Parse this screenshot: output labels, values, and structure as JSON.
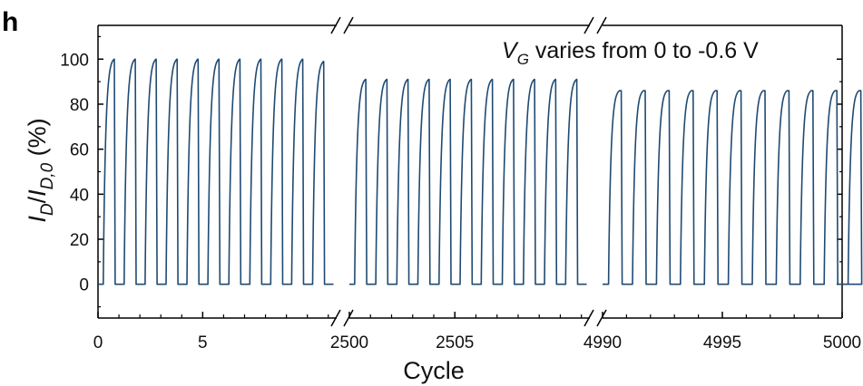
{
  "panel_label": "h",
  "chart_data": {
    "type": "line",
    "xlabel": "Cycle",
    "ylabel": {
      "main": "I",
      "sub1": "D",
      "slash": "/",
      "main2": "I",
      "sub2": "D,0",
      "unit": " (%)"
    },
    "annotation": {
      "var": "V",
      "sub": "G",
      "text": " varies from 0 to -0.6 V"
    },
    "ylim": [
      -15,
      115
    ],
    "y_ticks": [
      0,
      20,
      40,
      60,
      80,
      100
    ],
    "y_tick_labels": [
      "0",
      "20",
      "40",
      "60",
      "80",
      "100"
    ],
    "grid": false,
    "legend": "none",
    "line_color": "#1f4a73",
    "broken_axis": true,
    "segments": [
      {
        "x_range": [
          0,
          11.4
        ],
        "x_ticks": [
          0,
          5
        ],
        "x_tick_labels": [
          "0",
          "5"
        ],
        "cycles": 11,
        "start_cycle": 0,
        "plateau": 100,
        "end_plateau": 99
      },
      {
        "x_range": [
          2500,
          2511.4
        ],
        "x_ticks": [
          2500,
          2505
        ],
        "x_tick_labels": [
          "2500",
          "2505"
        ],
        "cycles": 11,
        "start_cycle": 2500,
        "plateau": 91,
        "end_plateau": 91
      },
      {
        "x_range": [
          4990,
          5000
        ],
        "x_ticks": [
          4990,
          4995,
          5000
        ],
        "x_tick_labels": [
          "4990",
          "4995",
          "5000"
        ],
        "cycles": 11,
        "start_cycle": 4990,
        "plateau": 86,
        "end_plateau": 86
      }
    ]
  }
}
